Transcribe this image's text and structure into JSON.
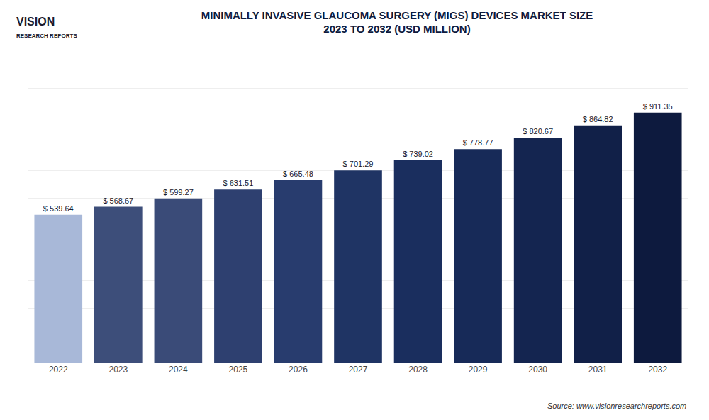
{
  "chart_data": {
    "type": "bar",
    "title": "MINIMALLY INVASIVE GLAUCOMA SURGERY (MIGS) DEVICES MARKET SIZE\n2023 TO 2032 (USD MILLION)",
    "categories": [
      "2022",
      "2023",
      "2024",
      "2025",
      "2026",
      "2027",
      "2028",
      "2029",
      "2030",
      "2031",
      "2032"
    ],
    "values": [
      539.64,
      568.67,
      599.27,
      631.51,
      665.48,
      701.29,
      739.02,
      778.77,
      820.67,
      864.82,
      911.35
    ],
    "value_labels": [
      "$ 539.64",
      "$ 568.67",
      "$ 599.27",
      "$ 631.51",
      "$ 665.48",
      "$ 701.29",
      "$ 739.02",
      "$ 778.77",
      "$ 820.67",
      "$ 864.82",
      "$ 911.35"
    ],
    "data_labels": true,
    "colors": [
      "#a8b8d8",
      "#3d4e7a",
      "#3a4b78",
      "#2e4070",
      "#283c6e",
      "#1f3464",
      "#1a2e5e",
      "#172a58",
      "#142550",
      "#112048",
      "#0d1a3e"
    ],
    "ylim": [
      0,
      1050
    ],
    "yticks": [
      0,
      100,
      200,
      300,
      400,
      500,
      600,
      700,
      800,
      900,
      1000
    ],
    "grid": true,
    "tick_labels": "x",
    "annotations": [
      "VISION",
      "RESEARCH REPORTS",
      "Source: www.visionresearchreports.com"
    ]
  }
}
